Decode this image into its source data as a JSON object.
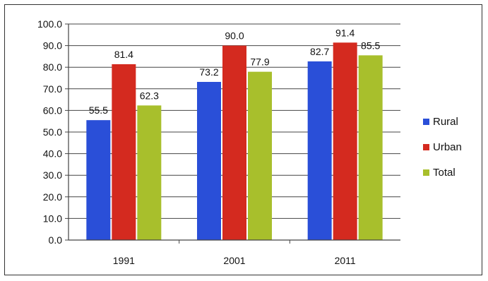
{
  "chart_data": {
    "type": "bar",
    "title": "",
    "xlabel": "",
    "ylabel": "",
    "categories": [
      "1991",
      "2001",
      "2011"
    ],
    "series": [
      {
        "name": "Rural",
        "values": [
          55.5,
          73.2,
          82.7
        ],
        "color": "#2a4fd8"
      },
      {
        "name": "Urban",
        "values": [
          81.4,
          90.0,
          91.4
        ],
        "color": "#d42a1f"
      },
      {
        "name": "Total",
        "values": [
          62.3,
          77.9,
          85.5
        ],
        "color": "#a8bf2c"
      }
    ],
    "value_labels": [
      [
        "55.5",
        "73.2",
        "82.7"
      ],
      [
        "81.4",
        "90.0",
        "91.4"
      ],
      [
        "62.3",
        "77.9",
        "85.5"
      ]
    ],
    "ylim": [
      0,
      100
    ],
    "y_ticks": [
      "0.0",
      "10.0",
      "20.0",
      "30.0",
      "40.0",
      "50.0",
      "60.0",
      "70.0",
      "80.0",
      "90.0",
      "100.0"
    ],
    "grid": true,
    "legend_position": "right"
  }
}
